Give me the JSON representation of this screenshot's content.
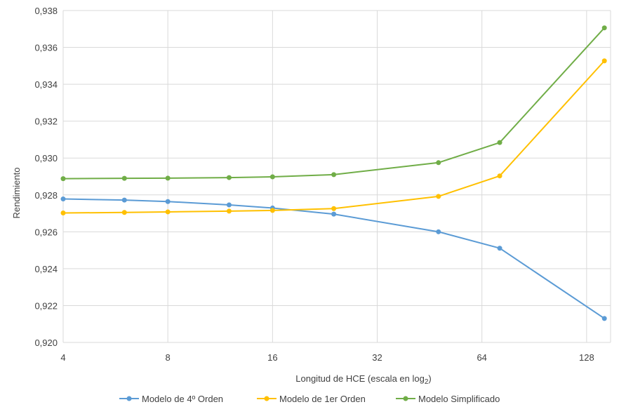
{
  "chart_data": {
    "type": "line",
    "title": "",
    "xlabel": "Longitud de HCE (escala en log",
    "xlabel_sub": "2",
    "xlabel_end": ")",
    "ylabel": "Rendimiento",
    "x_scale": "log2",
    "xlim": [
      4,
      150
    ],
    "ylim": [
      0.92,
      0.938
    ],
    "x_ticks": [
      4,
      8,
      16,
      32,
      64,
      128
    ],
    "x_tick_labels": [
      "4",
      "8",
      "16",
      "32",
      "64",
      "128"
    ],
    "y_ticks": [
      0.92,
      0.922,
      0.924,
      0.926,
      0.928,
      0.93,
      0.932,
      0.934,
      0.936,
      0.938
    ],
    "y_tick_labels": [
      "0,920",
      "0,922",
      "0,924",
      "0,926",
      "0,928",
      "0,930",
      "0,932",
      "0,934",
      "0,936",
      "0,938"
    ],
    "grid": true,
    "legend_position": "bottom",
    "x": [
      4,
      6,
      8,
      12,
      16,
      24,
      48,
      72,
      144
    ],
    "series": [
      {
        "name": "Modelo de  4º Orden",
        "color": "#5b9bd5",
        "values": [
          0.92778,
          0.92772,
          0.92764,
          0.92746,
          0.92729,
          0.92696,
          0.926,
          0.92511,
          0.9213
        ]
      },
      {
        "name": "Modelo de 1er Orden",
        "color": "#ffc000",
        "values": [
          0.92702,
          0.92705,
          0.92708,
          0.92712,
          0.92716,
          0.92726,
          0.92792,
          0.92903,
          0.93527
        ]
      },
      {
        "name": "Modelo Simplificado",
        "color": "#70ad47",
        "values": [
          0.92888,
          0.9289,
          0.92891,
          0.92894,
          0.92898,
          0.9291,
          0.92975,
          0.93084,
          0.93706
        ]
      }
    ]
  }
}
